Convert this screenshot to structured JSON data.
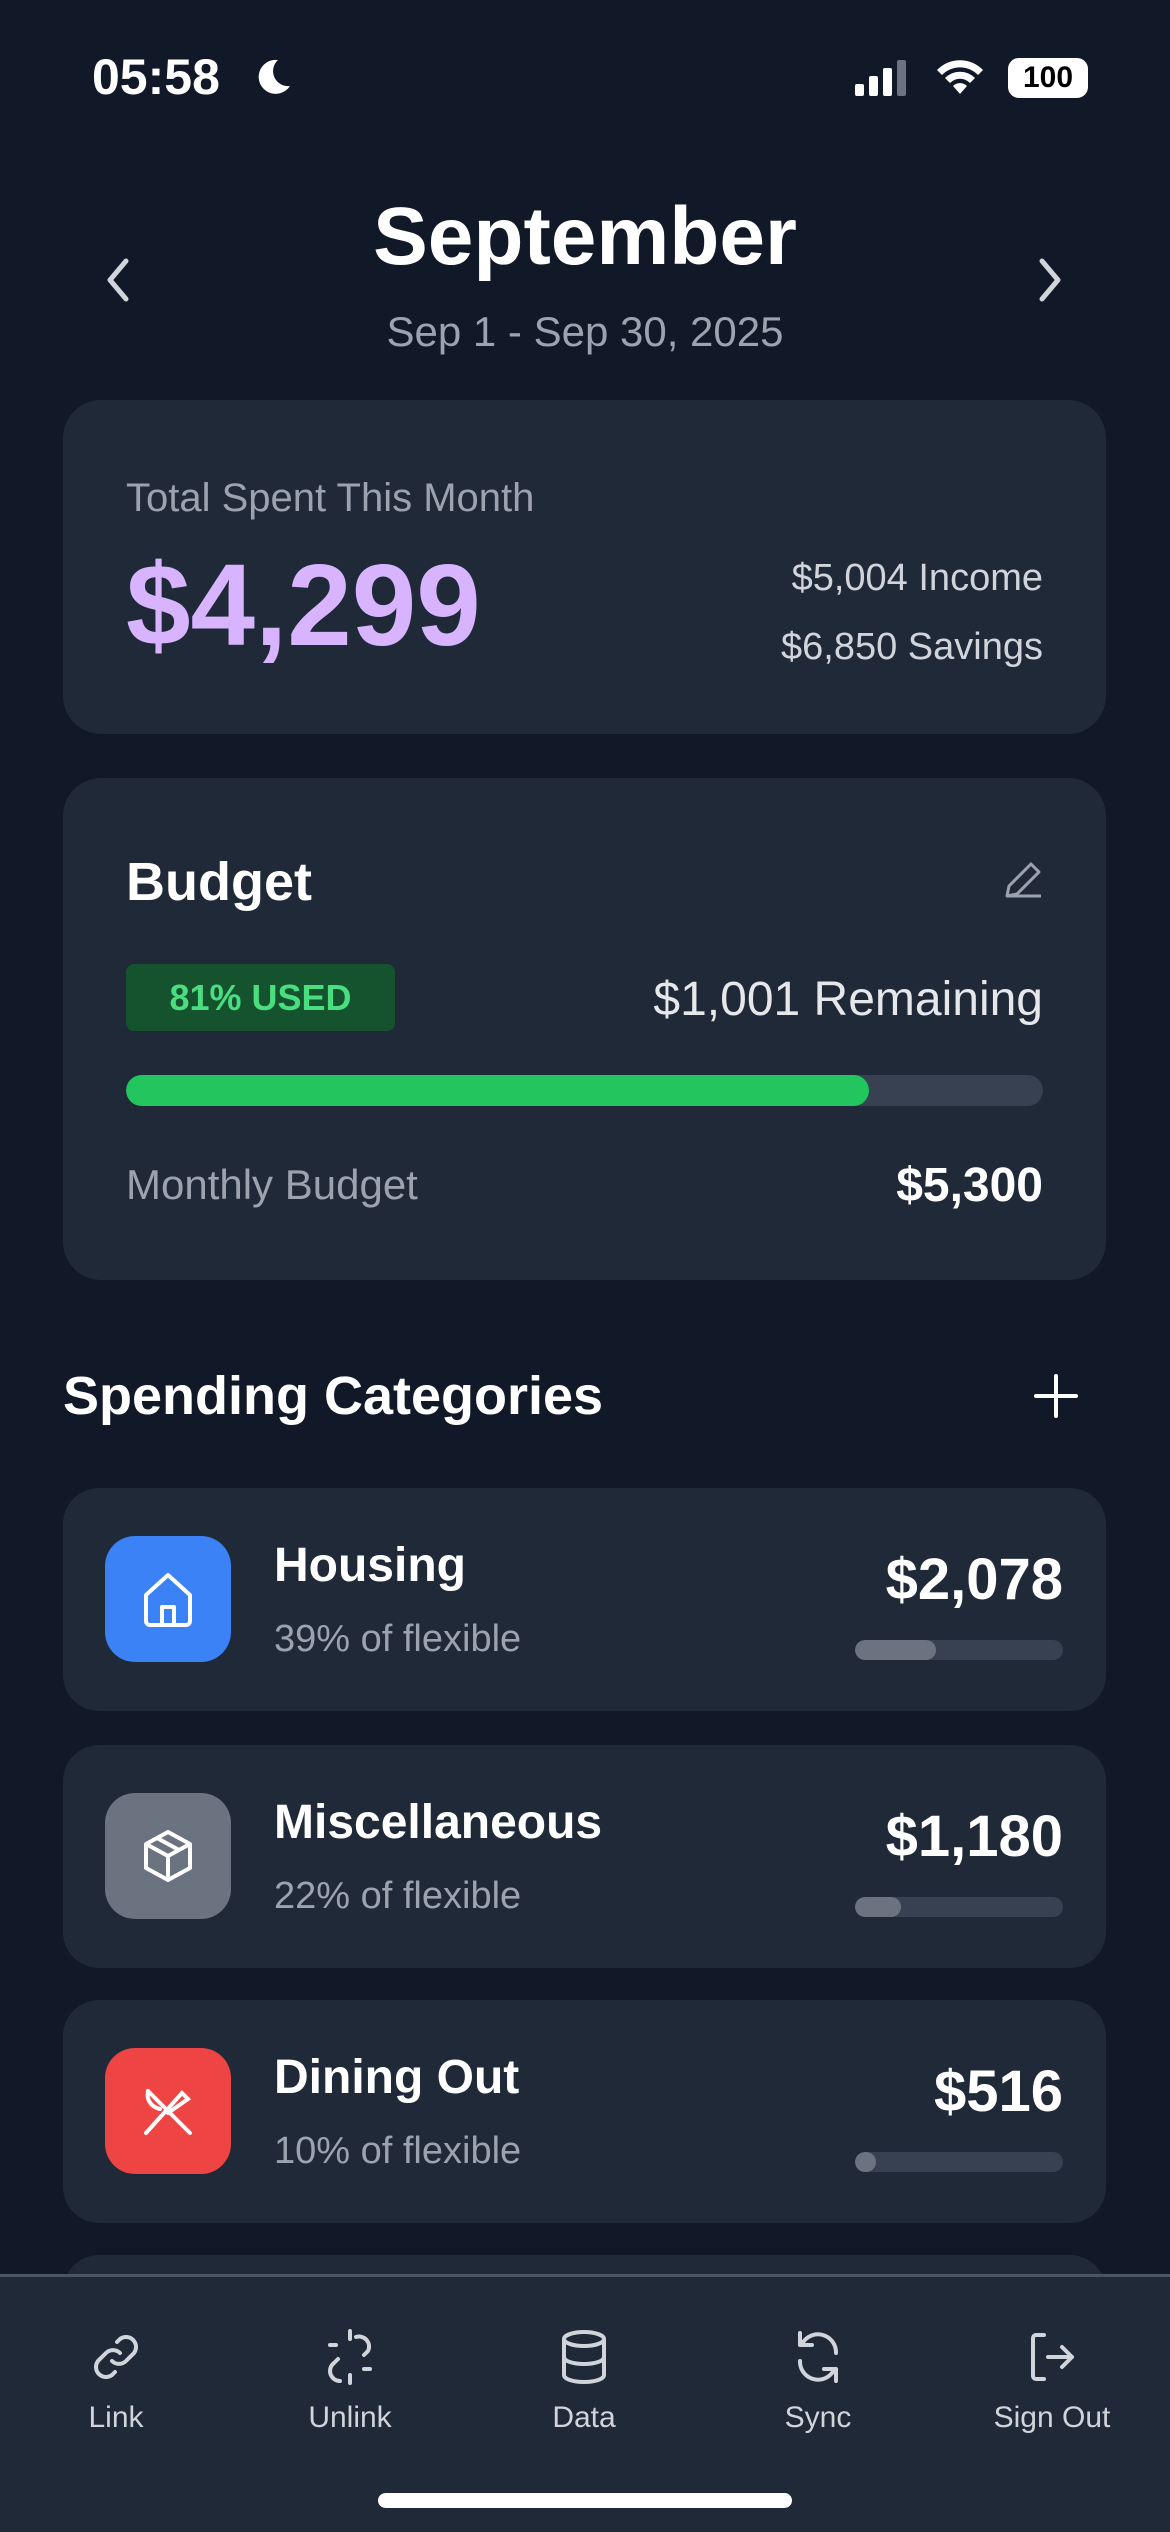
{
  "status_bar": {
    "time": "05:58",
    "battery": "100"
  },
  "header": {
    "title": "September",
    "date_range": "Sep 1 - Sep 30, 2025"
  },
  "summary": {
    "label": "Total Spent This Month",
    "total": "$4,299",
    "income": "$5,004 Income",
    "savings": "$6,850 Savings"
  },
  "budget": {
    "title": "Budget",
    "used_badge": "81% USED",
    "remaining": "$1,001 Remaining",
    "progress_percent": 81,
    "monthly_label": "Monthly Budget",
    "monthly_value": "$5,300",
    "colors": {
      "progress": "#22c55e"
    }
  },
  "categories": {
    "title": "Spending Categories",
    "items": [
      {
        "name": "Housing",
        "subtitle": "39% of flexible",
        "amount": "$2,078",
        "percent": 39,
        "icon": "house-icon",
        "color": "#3b82f6"
      },
      {
        "name": "Miscellaneous",
        "subtitle": "22% of flexible",
        "amount": "$1,180",
        "percent": 22,
        "icon": "box-icon",
        "color": "#6b7280"
      },
      {
        "name": "Dining Out",
        "subtitle": "10% of flexible",
        "amount": "$516",
        "percent": 10,
        "icon": "utensils-crossed-icon",
        "color": "#ef4444"
      }
    ]
  },
  "tabbar": [
    {
      "label": "Link",
      "icon": "link-icon"
    },
    {
      "label": "Unlink",
      "icon": "unlink-icon"
    },
    {
      "label": "Data",
      "icon": "database-icon"
    },
    {
      "label": "Sync",
      "icon": "sync-icon"
    },
    {
      "label": "Sign Out",
      "icon": "sign-out-icon"
    }
  ]
}
